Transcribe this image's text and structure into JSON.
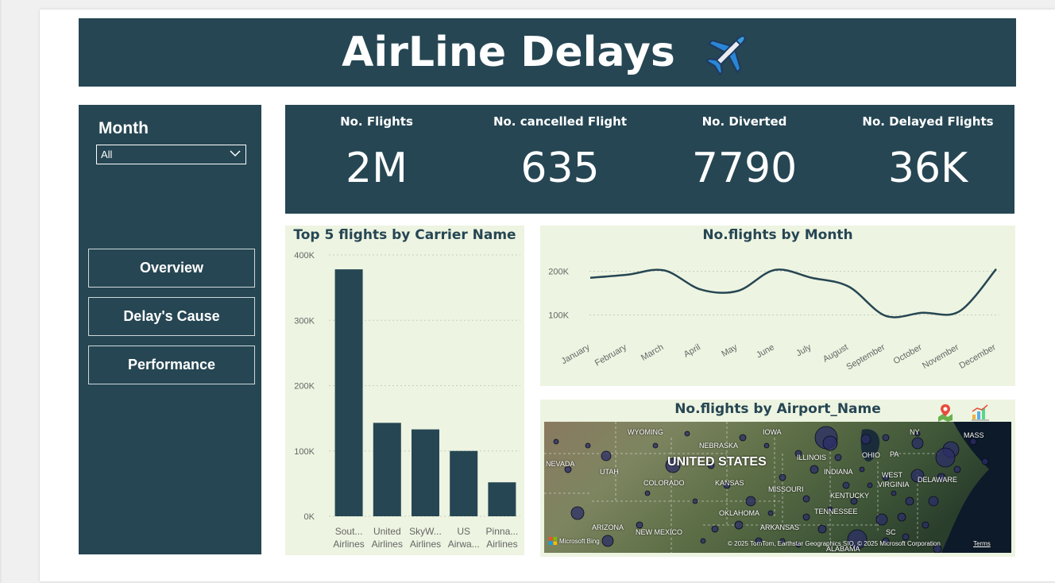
{
  "header": {
    "title": "AirLine Delays",
    "icon": "airplane-icon"
  },
  "sidebar": {
    "month_label": "Month",
    "month_selected": "All",
    "nav": [
      {
        "label": "Overview"
      },
      {
        "label": "Delay's Cause"
      },
      {
        "label": "Performance"
      }
    ]
  },
  "kpis": [
    {
      "label": "No. Flights",
      "value": "2M"
    },
    {
      "label": "No. cancelled Flight",
      "value": "635"
    },
    {
      "label": "No. Diverted",
      "value": "7790"
    },
    {
      "label": "No. Delayed Flights",
      "value": "36K"
    }
  ],
  "charts": {
    "bar_title": "Top 5 flights by Carrier Name",
    "line_title": "No.flights by Month",
    "map_title": "No.flights by Airport_Name"
  },
  "chart_data": [
    {
      "type": "bar",
      "title": "Top 5 flights by Carrier Name",
      "categories": [
        [
          "Sout...",
          "Airlines"
        ],
        [
          "United",
          "Airlines"
        ],
        [
          "SkyW...",
          "Airlines"
        ],
        [
          "US",
          "Airwa..."
        ],
        [
          "Pinna...",
          "Airlines"
        ]
      ],
      "values": [
        378000,
        143000,
        133000,
        100000,
        52000
      ],
      "ylim": [
        0,
        400000
      ],
      "yticks": [
        0,
        100000,
        200000,
        300000,
        400000
      ],
      "ytick_labels": [
        "0K",
        "100K",
        "200K",
        "300K",
        "400K"
      ],
      "grid": true,
      "color": "#264653"
    },
    {
      "type": "line",
      "title": "No.flights by Month",
      "categories": [
        "January",
        "February",
        "March",
        "April",
        "May",
        "June",
        "July",
        "August",
        "September",
        "October",
        "November",
        "December"
      ],
      "values": [
        185000,
        192000,
        202000,
        158000,
        155000,
        203000,
        185000,
        165000,
        98000,
        105000,
        108000,
        205000
      ],
      "ylim": [
        50000,
        250000
      ],
      "yticks": [
        100000,
        200000
      ],
      "ytick_labels": [
        "100K",
        "200K"
      ],
      "grid": true,
      "color": "#264653"
    }
  ],
  "map": {
    "labels": [
      "WYOMING",
      "NEBRASKA",
      "IOWA",
      "NEVADA",
      "UTAH",
      "UNITED STATES",
      "ILLINOIS",
      "OHIO",
      "PA",
      "NY",
      "MASS",
      "COLORADO",
      "KANSAS",
      "MISSOURI",
      "INDIANA",
      "WEST",
      "VIRGINIA",
      "DELAWARE",
      "KENTUCKY",
      "OKLAHOMA",
      "TENNESSEE",
      "ARIZONA",
      "NEW MEXICO",
      "ARKANSAS",
      "SC",
      "ALABAMA"
    ],
    "attribution": "© 2025 TomTom, Earthstar Geographics SIO, © 2025 Microsoft Corporation",
    "terms": "Terms",
    "bing": "Microsoft Bing"
  }
}
